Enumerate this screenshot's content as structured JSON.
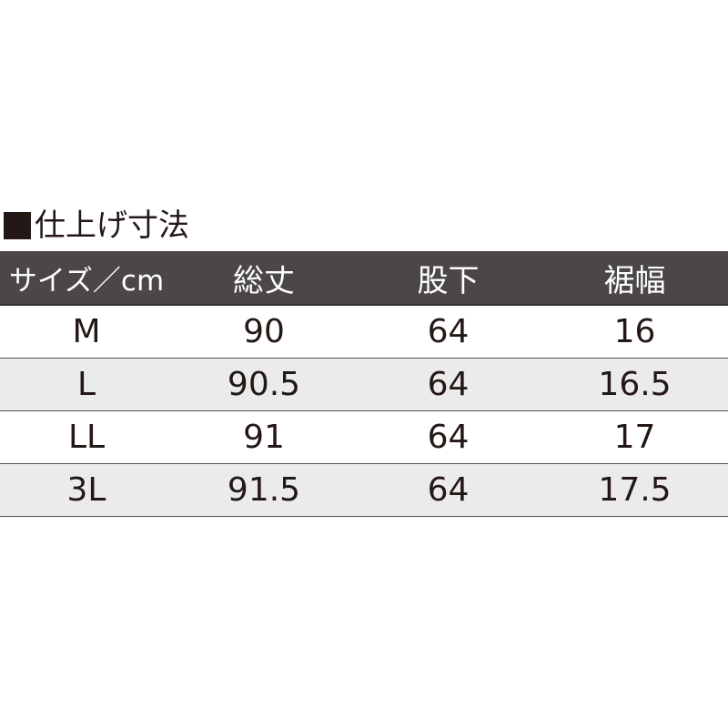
{
  "title": "仕上げ寸法",
  "table": {
    "headers": [
      "サイズ／cm",
      "総丈",
      "股下",
      "裾幅"
    ],
    "rows": [
      [
        "M",
        "90",
        "64",
        "16"
      ],
      [
        "L",
        "90.5",
        "64",
        "16.5"
      ],
      [
        "LL",
        "91",
        "64",
        "17"
      ],
      [
        "3L",
        "91.5",
        "64",
        "17.5"
      ]
    ]
  },
  "colors": {
    "header_bg": "#4b4747",
    "alt_row_bg": "#ebebeb",
    "text": "#231815"
  }
}
